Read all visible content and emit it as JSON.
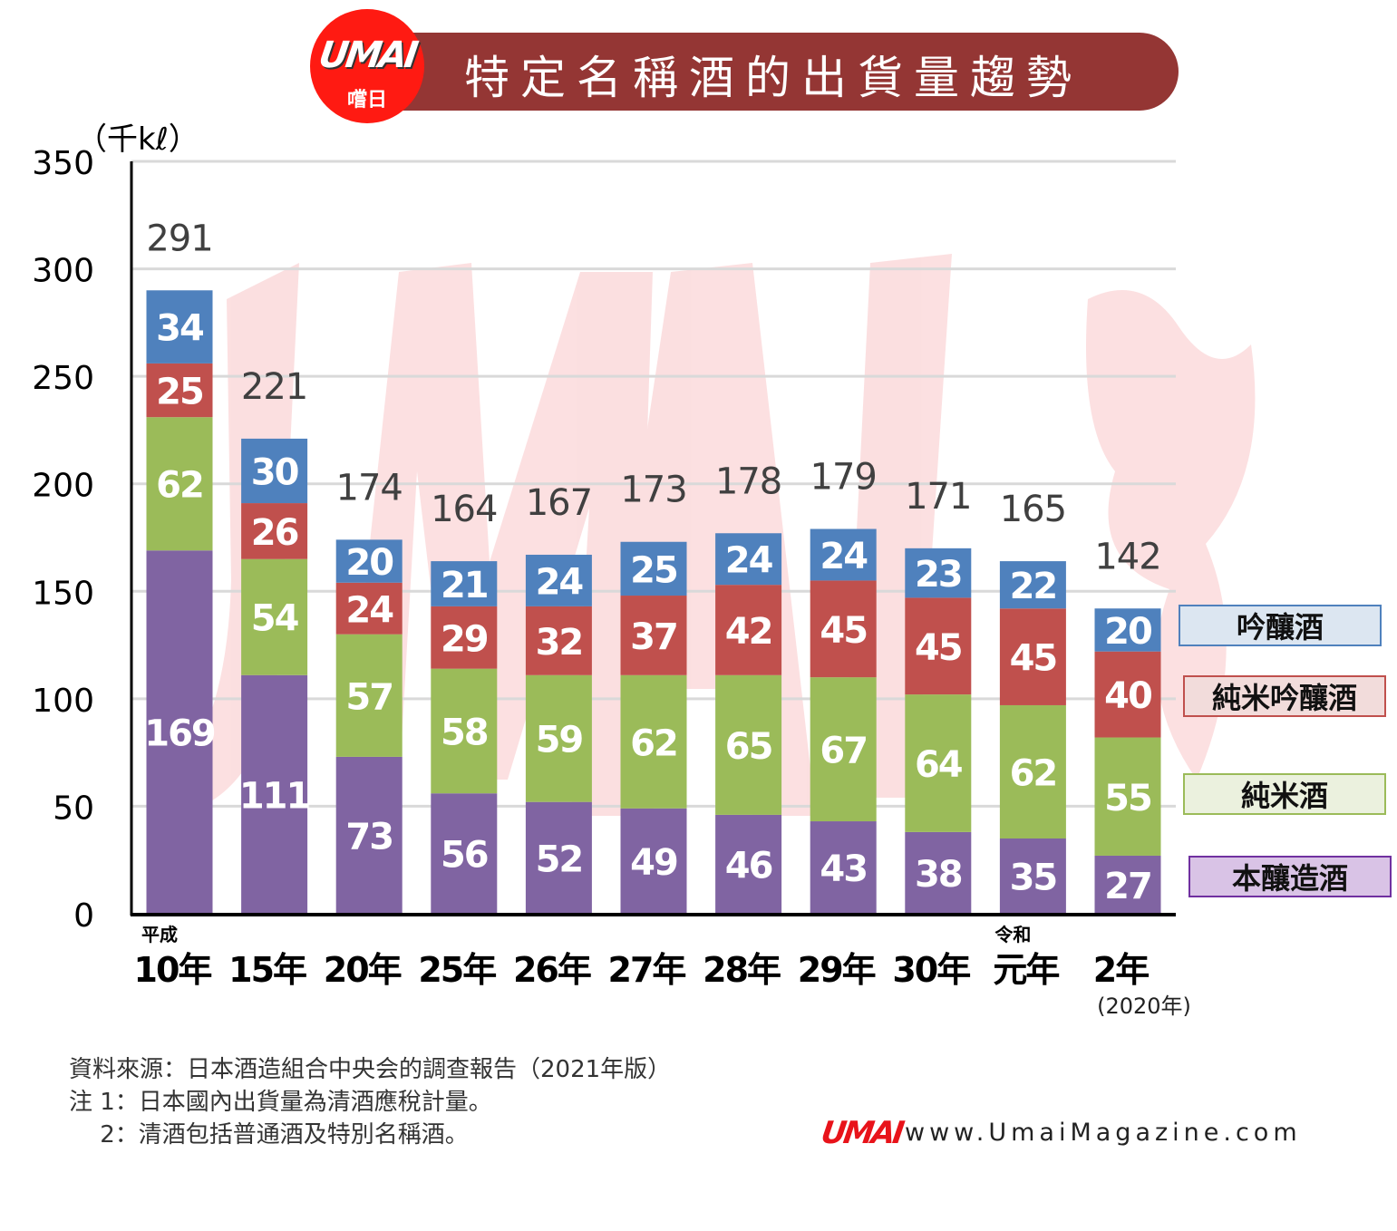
{
  "header": {
    "title": "特定名稱酒的出貨量趨勢",
    "logo_text": "UMAI",
    "logo_subtext": "嚐日",
    "banner_color": "#943634",
    "logo_color": "#ff1a12"
  },
  "chart_data": {
    "type": "bar",
    "stacked": true,
    "title": "特定名稱酒的出貨量趨勢",
    "ylabel": "（千kℓ）",
    "xlabel": "",
    "ylim": [
      0,
      350
    ],
    "yticks": [
      0,
      50,
      100,
      150,
      200,
      250,
      300,
      350
    ],
    "grid": true,
    "legend_position": "right",
    "era_labels": [
      {
        "category_index": 0,
        "text": "平成"
      },
      {
        "category_index": 9,
        "text": "令和"
      }
    ],
    "categories": [
      "10年",
      "15年",
      "20年",
      "25年",
      "26年",
      "27年",
      "28年",
      "29年",
      "30年",
      "元年",
      "2年"
    ],
    "category_note": {
      "category_index": 10,
      "text": "(2020年)"
    },
    "series": [
      {
        "name": "本釀造酒",
        "color": "#8064a2",
        "values": [
          169,
          111,
          73,
          56,
          52,
          49,
          46,
          43,
          38,
          35,
          27
        ]
      },
      {
        "name": "純米酒",
        "color": "#9bbb59",
        "values": [
          62,
          54,
          57,
          58,
          59,
          62,
          65,
          67,
          64,
          62,
          55
        ]
      },
      {
        "name": "純米吟釀酒",
        "color": "#c0504d",
        "values": [
          25,
          26,
          24,
          29,
          32,
          37,
          42,
          45,
          45,
          45,
          40
        ]
      },
      {
        "name": "吟釀酒",
        "color": "#4f81bd",
        "values": [
          34,
          30,
          20,
          21,
          24,
          25,
          24,
          24,
          23,
          22,
          20
        ]
      }
    ],
    "totals": [
      291,
      221,
      174,
      164,
      167,
      173,
      178,
      179,
      171,
      165,
      142
    ]
  },
  "legend": [
    {
      "label": "吟釀酒",
      "border": "#4f81bd",
      "fill": "#dce6f1"
    },
    {
      "label": "純米吟釀酒",
      "border": "#c0504d",
      "fill": "#f2dcdb"
    },
    {
      "label": "純米酒",
      "border": "#9bbb59",
      "fill": "#ebf1de"
    },
    {
      "label": "本釀造酒",
      "border": "#7030a0",
      "fill": "#d9c3e6"
    }
  ],
  "notes": [
    "資料來源：日本酒造組合中央会的調查報告（2021年版）",
    "注 1：日本國內出貨量為清酒應稅計量。",
    "　 2：清酒包括普通酒及特別名稱酒。"
  ],
  "footer": {
    "logo_text": "UMAI",
    "url": "www.UmaiMagazine.com"
  }
}
